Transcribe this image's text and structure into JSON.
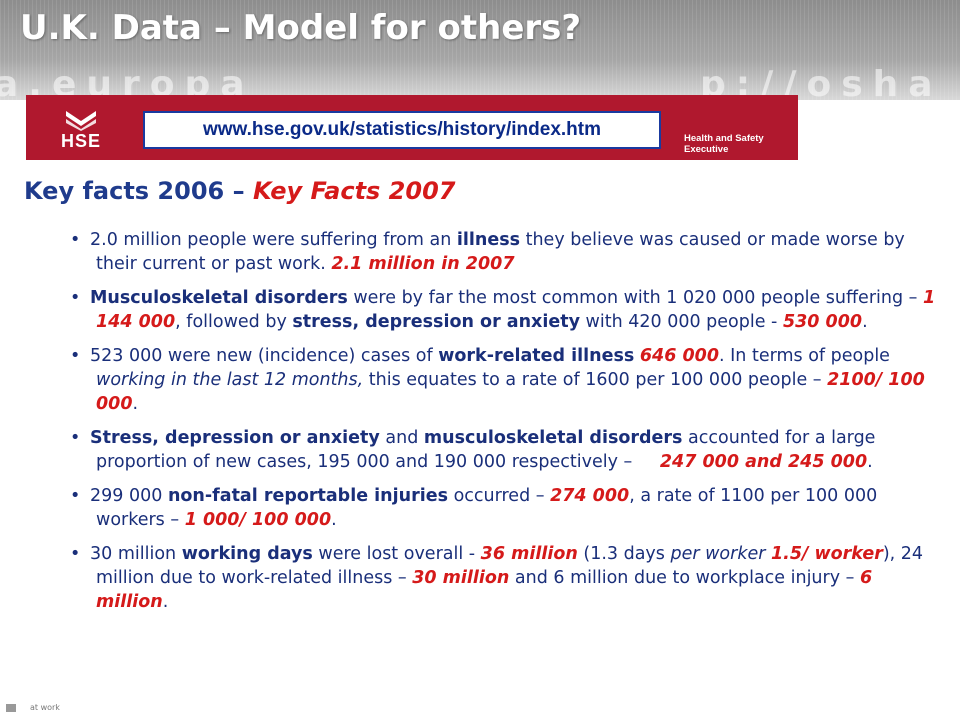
{
  "slide": {
    "title": "U.K. Data – Model for others?",
    "watermark_left": "a.europa",
    "watermark_right": "p://osha"
  },
  "banner": {
    "logo_text": "HSE",
    "url": "www.hse.gov.uk/statistics/history/index.htm",
    "org_line1": "Health and Safety",
    "org_line2": "Executive",
    "color": "#b0182e"
  },
  "heading": {
    "part1": "Key facts 2006 – ",
    "part2": "Key Facts 2007"
  },
  "bullets": [
    {
      "t1": "2.0 million people were suffering from an ",
      "b1": "illness",
      "t2": " they believe was caused or made worse by their current or past work. ",
      "r1": "2.1 million in 2007"
    },
    {
      "b1": "Musculoskeletal disorders",
      "t1": " were by far the most common with 1 020 000 people suffering – ",
      "r1": "1 144 000",
      "t2": ", followed by ",
      "b2": "stress, depression or anxiety",
      "t3": " with 420 000 people - ",
      "r2": "530 000",
      "t4": "."
    },
    {
      "t1": "523 000 were new (incidence) cases of ",
      "b1": "work-related illness",
      "t2": " ",
      "r1": "646 000",
      "t3": ". In terms of people ",
      "i1": "working in the last 12 months,",
      "t4": " this equates to a rate of 1600 per 100 000 people – ",
      "r2": "2100/ 100 000",
      "t5": "."
    },
    {
      "b1": "Stress, depression or anxiety",
      "t1": " and ",
      "b2": "musculoskeletal disorders",
      "t2": " accounted for a large proportion of new cases, 195 000 and 190 000 respectively – ",
      "r1": "247 000 and 245 000",
      "t3": "."
    },
    {
      "t1": "299 000 ",
      "b1": "non-fatal reportable injuries",
      "t2": " occurred – ",
      "r1": "274 000",
      "t3": ", a rate of 1100 per 100 000 workers – ",
      "r2": "1 000/ 100 000",
      "t4": "."
    },
    {
      "t1": "30 million ",
      "b1": "working days",
      "t2": " were lost overall - ",
      "r1": "36 million",
      "t3": " (1.3 days ",
      "i1": "per worker",
      "t4": " ",
      "r2": "1.5/ worker",
      "t5": "), 24 million due to work-related illness – ",
      "r3": "30 million",
      "t6": " and 6 million due to workplace injury – ",
      "r4": "6 million",
      "t7": "."
    }
  ],
  "footer": {
    "corner_text": "at work"
  },
  "colors": {
    "body_text": "#1a2f7a",
    "highlight_red": "#d51a1a",
    "heading_blue": "#1f3b8c"
  }
}
